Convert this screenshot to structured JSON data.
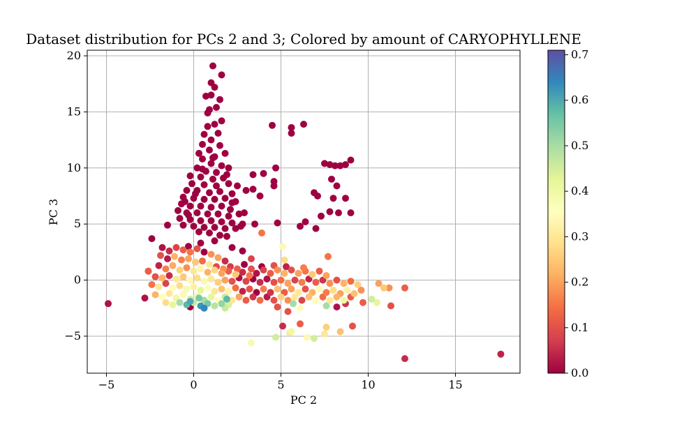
{
  "chart_data": {
    "type": "scatter",
    "title": "Dataset distribution for PCs 2 and 3; Colored by amount of CARYOPHYLLENE",
    "xlabel": "PC 2",
    "ylabel": "PC 3",
    "xlim": [
      -6.1,
      18.7
    ],
    "ylim": [
      -8.3,
      20.5
    ],
    "xticks": [
      -5,
      0,
      5,
      10,
      15
    ],
    "xtick_labels": [
      "−5",
      "0",
      "5",
      "10",
      "15"
    ],
    "yticks": [
      -5,
      0,
      5,
      10,
      15,
      20
    ],
    "ytick_labels": [
      "−5",
      "0",
      "5",
      "10",
      "15",
      "20"
    ],
    "grid": true,
    "colormap": "Spectral",
    "colorbar": {
      "label": "",
      "vmin": 0.0,
      "vmax": 0.71,
      "ticks": [
        0.0,
        0.1,
        0.2,
        0.3,
        0.4,
        0.5,
        0.6,
        0.7
      ],
      "tick_labels": [
        "0.0",
        "0.1",
        "0.2",
        "0.3",
        "0.4",
        "0.5",
        "0.6",
        "0.7"
      ],
      "stops": [
        "#9e0142",
        "#d53e4f",
        "#f46d43",
        "#fdae61",
        "#fee08b",
        "#ffffbf",
        "#e6f598",
        "#abdda4",
        "#66c2a5",
        "#3288bd",
        "#5e4fa2"
      ]
    },
    "points": [
      [
        1.1,
        19.1,
        0.0
      ],
      [
        1.6,
        18.3,
        0.0
      ],
      [
        1.0,
        17.6,
        0.0
      ],
      [
        1.2,
        17.2,
        0.0
      ],
      [
        0.7,
        16.4,
        0.0
      ],
      [
        1.0,
        16.5,
        0.0
      ],
      [
        1.5,
        16.1,
        0.0
      ],
      [
        0.9,
        15.2,
        0.0
      ],
      [
        1.3,
        15.4,
        0.0
      ],
      [
        0.8,
        14.9,
        0.0
      ],
      [
        1.6,
        14.2,
        0.0
      ],
      [
        1.2,
        13.9,
        0.0
      ],
      [
        0.8,
        13.7,
        0.0
      ],
      [
        0.6,
        13.0,
        0.0
      ],
      [
        1.4,
        13.1,
        0.0
      ],
      [
        1.0,
        12.5,
        0.0
      ],
      [
        0.5,
        12.1,
        0.0
      ],
      [
        1.5,
        12.0,
        0.0
      ],
      [
        0.9,
        11.6,
        0.0
      ],
      [
        0.3,
        11.3,
        0.0
      ],
      [
        1.2,
        11.0,
        0.0
      ],
      [
        1.8,
        11.3,
        0.0
      ],
      [
        0.5,
        10.8,
        0.0
      ],
      [
        1.0,
        10.4,
        0.0
      ],
      [
        1.6,
        10.2,
        0.0
      ],
      [
        0.2,
        10.0,
        0.0
      ],
      [
        0.7,
        9.7,
        0.0
      ],
      [
        1.3,
        9.6,
        0.0
      ],
      [
        2.0,
        10.0,
        0.0
      ],
      [
        -0.2,
        9.3,
        0.0
      ],
      [
        0.4,
        9.2,
        0.0
      ],
      [
        1.1,
        9.0,
        0.0
      ],
      [
        1.7,
        9.1,
        0.0
      ],
      [
        -0.1,
        8.6,
        0.0
      ],
      [
        0.6,
        8.5,
        0.0
      ],
      [
        1.3,
        8.4,
        0.0
      ],
      [
        2.0,
        8.6,
        0.0
      ],
      [
        -0.4,
        8.0,
        0.0
      ],
      [
        0.2,
        8.0,
        0.0
      ],
      [
        0.9,
        7.8,
        0.0
      ],
      [
        1.5,
        7.9,
        0.0
      ],
      [
        2.2,
        7.7,
        0.0
      ],
      [
        -0.6,
        7.4,
        0.0
      ],
      [
        0.0,
        7.3,
        0.0
      ],
      [
        0.6,
        7.2,
        0.0
      ],
      [
        1.2,
        7.2,
        0.0
      ],
      [
        1.8,
        7.3,
        0.0
      ],
      [
        2.4,
        7.0,
        0.0
      ],
      [
        -0.7,
        6.8,
        0.0
      ],
      [
        -0.2,
        6.6,
        0.0
      ],
      [
        0.4,
        6.6,
        0.0
      ],
      [
        1.0,
        6.5,
        0.0
      ],
      [
        1.6,
        6.6,
        0.0
      ],
      [
        2.1,
        6.3,
        0.0
      ],
      [
        -0.9,
        6.2,
        0.0
      ],
      [
        -0.4,
        6.0,
        0.0
      ],
      [
        0.2,
        6.0,
        0.0
      ],
      [
        0.8,
        5.9,
        0.0
      ],
      [
        1.4,
        5.9,
        0.0
      ],
      [
        2.0,
        5.7,
        0.0
      ],
      [
        2.6,
        5.9,
        0.0
      ],
      [
        -0.8,
        5.5,
        0.0
      ],
      [
        -0.2,
        5.4,
        0.0
      ],
      [
        0.4,
        5.3,
        0.0
      ],
      [
        1.0,
        5.3,
        0.0
      ],
      [
        1.6,
        5.2,
        0.0
      ],
      [
        2.2,
        5.1,
        0.0
      ],
      [
        2.8,
        5.0,
        0.0
      ],
      [
        -0.6,
        4.9,
        0.0
      ],
      [
        0.0,
        4.8,
        0.0
      ],
      [
        0.6,
        4.7,
        0.0
      ],
      [
        1.2,
        4.7,
        0.0
      ],
      [
        1.8,
        4.6,
        0.0
      ],
      [
        2.4,
        4.6,
        0.0
      ],
      [
        -1.5,
        4.9,
        0.0
      ],
      [
        0.3,
        4.3,
        0.0
      ],
      [
        0.9,
        4.2,
        0.0
      ],
      [
        1.5,
        4.0,
        0.0
      ],
      [
        2.7,
        4.8,
        0.0
      ],
      [
        -0.3,
        5.8,
        0.0
      ],
      [
        0.1,
        7.7,
        0.0
      ],
      [
        0.5,
        9.9,
        0.0
      ],
      [
        1.1,
        10.9,
        0.0
      ],
      [
        1.9,
        9.4,
        0.0
      ],
      [
        -0.5,
        7.0,
        0.0
      ],
      [
        2.5,
        8.4,
        0.0
      ],
      [
        2.2,
        6.9,
        0.0
      ],
      [
        3.0,
        8.0,
        0.0
      ],
      [
        2.9,
        6.0,
        0.0
      ],
      [
        3.5,
        5.0,
        0.0
      ],
      [
        3.4,
        8.1,
        0.0
      ],
      [
        3.8,
        7.5,
        0.0
      ],
      [
        3.4,
        9.4,
        0.0
      ],
      [
        4.0,
        9.5,
        0.0
      ],
      [
        4.6,
        8.8,
        0.0
      ],
      [
        4.6,
        8.4,
        0.0
      ],
      [
        4.7,
        10.0,
        0.0
      ],
      [
        4.5,
        13.8,
        0.0
      ],
      [
        5.6,
        13.6,
        0.0
      ],
      [
        5.6,
        13.1,
        0.0
      ],
      [
        6.3,
        13.9,
        0.0
      ],
      [
        6.1,
        4.8,
        0.0
      ],
      [
        6.4,
        5.2,
        0.0
      ],
      [
        7.0,
        4.6,
        0.0
      ],
      [
        6.9,
        7.8,
        0.0
      ],
      [
        7.1,
        7.5,
        0.0
      ],
      [
        7.3,
        5.7,
        0.0
      ],
      [
        7.5,
        10.4,
        0.0
      ],
      [
        7.8,
        10.3,
        0.0
      ],
      [
        8.1,
        10.2,
        0.0
      ],
      [
        8.4,
        10.2,
        0.0
      ],
      [
        8.7,
        10.3,
        0.0
      ],
      [
        9.0,
        10.7,
        0.0
      ],
      [
        7.9,
        9.0,
        0.0
      ],
      [
        8.2,
        8.4,
        0.0
      ],
      [
        8.0,
        7.3,
        0.0
      ],
      [
        8.7,
        7.3,
        0.0
      ],
      [
        7.8,
        6.1,
        0.0
      ],
      [
        8.3,
        6.0,
        0.0
      ],
      [
        9.0,
        6.0,
        0.0
      ],
      [
        4.8,
        5.1,
        0.0
      ],
      [
        -2.4,
        3.7,
        0.0
      ],
      [
        -4.9,
        -2.1,
        0.02
      ],
      [
        2.8,
        2.6,
        0.0
      ],
      [
        1.9,
        3.9,
        0.0
      ],
      [
        -1.8,
        2.9,
        0.02
      ],
      [
        -1.4,
        2.6,
        0.05
      ],
      [
        -1.0,
        2.9,
        0.08
      ],
      [
        -0.6,
        2.7,
        0.12
      ],
      [
        -0.2,
        2.5,
        0.15
      ],
      [
        0.2,
        2.8,
        0.1
      ],
      [
        0.6,
        2.5,
        0.0
      ],
      [
        1.0,
        2.3,
        0.18
      ],
      [
        1.4,
        2.0,
        0.2
      ],
      [
        1.8,
        1.7,
        0.05
      ],
      [
        -1.9,
        2.2,
        0.1
      ],
      [
        -1.5,
        1.9,
        0.03
      ],
      [
        -1.1,
        2.1,
        0.22
      ],
      [
        -0.7,
        1.8,
        0.16
      ],
      [
        -0.3,
        1.9,
        0.2
      ],
      [
        0.1,
        1.6,
        0.25
      ],
      [
        0.5,
        1.7,
        0.14
      ],
      [
        0.9,
        1.4,
        0.3
      ],
      [
        1.3,
        1.2,
        0.09
      ],
      [
        1.7,
        1.0,
        0.18
      ],
      [
        2.1,
        1.2,
        0.07
      ],
      [
        2.5,
        1.0,
        0.12
      ],
      [
        2.9,
        1.4,
        0.0
      ],
      [
        3.3,
        1.0,
        0.1
      ],
      [
        -2.6,
        0.8,
        0.1
      ],
      [
        -2.0,
        1.3,
        0.04
      ],
      [
        -1.6,
        1.0,
        0.16
      ],
      [
        -1.2,
        1.3,
        0.21
      ],
      [
        -0.8,
        0.9,
        0.26
      ],
      [
        -0.4,
        1.1,
        0.18
      ],
      [
        0.0,
        0.8,
        0.3
      ],
      [
        0.4,
        1.0,
        0.33
      ],
      [
        0.8,
        0.7,
        0.22
      ],
      [
        1.2,
        0.9,
        0.27
      ],
      [
        1.6,
        0.6,
        0.2
      ],
      [
        2.0,
        0.8,
        0.12
      ],
      [
        2.4,
        0.5,
        0.25
      ],
      [
        2.8,
        0.7,
        0.05
      ],
      [
        3.2,
        0.4,
        0.15
      ],
      [
        3.6,
        0.6,
        0.02
      ],
      [
        4.0,
        0.9,
        0.08
      ],
      [
        4.4,
        0.6,
        0.12
      ],
      [
        4.8,
        0.9,
        0.18
      ],
      [
        5.2,
        0.6,
        0.22
      ],
      [
        5.6,
        0.9,
        0.1
      ],
      [
        6.0,
        0.6,
        0.2
      ],
      [
        6.4,
        0.8,
        0.15
      ],
      [
        6.8,
        0.5,
        0.25
      ],
      [
        7.2,
        0.8,
        0.12
      ],
      [
        7.6,
        0.4,
        0.2
      ],
      [
        -2.2,
        0.3,
        0.1
      ],
      [
        -1.8,
        0.2,
        0.22
      ],
      [
        -1.4,
        0.4,
        0.05
      ],
      [
        -1.0,
        0.1,
        0.3
      ],
      [
        -0.6,
        0.3,
        0.25
      ],
      [
        -0.2,
        0.0,
        0.34
      ],
      [
        0.2,
        0.2,
        0.28
      ],
      [
        0.6,
        -0.1,
        0.38
      ],
      [
        1.0,
        0.1,
        0.3
      ],
      [
        1.4,
        -0.2,
        0.26
      ],
      [
        1.8,
        0.0,
        0.2
      ],
      [
        2.2,
        -0.1,
        0.1
      ],
      [
        2.6,
        0.2,
        0.02
      ],
      [
        3.0,
        -0.1,
        0.08
      ],
      [
        3.4,
        0.1,
        0.0
      ],
      [
        3.8,
        -0.2,
        0.05
      ],
      [
        4.2,
        0.1,
        0.02
      ],
      [
        4.6,
        -0.2,
        0.1
      ],
      [
        5.0,
        0.0,
        0.14
      ],
      [
        5.4,
        -0.3,
        0.2
      ],
      [
        5.8,
        0.0,
        0.08
      ],
      [
        6.2,
        -0.2,
        0.16
      ],
      [
        6.6,
        0.1,
        0.04
      ],
      [
        7.0,
        -0.2,
        0.12
      ],
      [
        7.4,
        0.0,
        0.06
      ],
      [
        7.8,
        -0.3,
        0.18
      ],
      [
        8.2,
        0.0,
        0.1
      ],
      [
        8.6,
        -0.3,
        0.22
      ],
      [
        9.0,
        -0.1,
        0.14
      ],
      [
        9.4,
        -0.4,
        0.26
      ],
      [
        -2.4,
        -0.4,
        0.15
      ],
      [
        -2.0,
        -0.6,
        0.3
      ],
      [
        -1.6,
        -0.3,
        0.08
      ],
      [
        -1.2,
        -0.7,
        0.35
      ],
      [
        -0.8,
        -0.5,
        0.28
      ],
      [
        -0.4,
        -0.8,
        0.38
      ],
      [
        0.0,
        -0.6,
        0.32
      ],
      [
        0.4,
        -0.9,
        0.42
      ],
      [
        0.8,
        -0.7,
        0.36
      ],
      [
        1.2,
        -1.0,
        0.3
      ],
      [
        1.6,
        -0.8,
        0.24
      ],
      [
        2.0,
        -1.0,
        0.33
      ],
      [
        2.4,
        -0.7,
        0.14
      ],
      [
        2.8,
        -1.0,
        0.04
      ],
      [
        3.2,
        -0.8,
        0.1
      ],
      [
        3.6,
        -1.1,
        0.0
      ],
      [
        4.0,
        -0.8,
        0.16
      ],
      [
        4.4,
        -1.1,
        0.06
      ],
      [
        4.8,
        -0.8,
        0.24
      ],
      [
        5.2,
        -1.1,
        0.12
      ],
      [
        5.6,
        -0.8,
        0.2
      ],
      [
        6.0,
        -1.1,
        0.3
      ],
      [
        6.4,
        -0.8,
        0.1
      ],
      [
        6.8,
        -1.1,
        0.22
      ],
      [
        7.2,
        -0.8,
        0.34
      ],
      [
        7.6,
        -1.1,
        0.16
      ],
      [
        8.0,
        -0.9,
        0.28
      ],
      [
        8.4,
        -1.2,
        0.2
      ],
      [
        8.8,
        -0.9,
        0.32
      ],
      [
        9.2,
        -1.2,
        0.24
      ],
      [
        9.6,
        -0.9,
        0.18
      ],
      [
        -2.8,
        -1.6,
        0.02
      ],
      [
        -2.2,
        -1.3,
        0.22
      ],
      [
        -1.8,
        -1.5,
        0.36
      ],
      [
        -1.4,
        -1.2,
        0.3
      ],
      [
        -1.0,
        -1.6,
        0.4
      ],
      [
        -0.6,
        -1.3,
        0.34
      ],
      [
        -0.2,
        -1.7,
        0.45
      ],
      [
        0.2,
        -1.4,
        0.38
      ],
      [
        0.6,
        -1.8,
        0.5
      ],
      [
        1.0,
        -1.5,
        0.42
      ],
      [
        1.4,
        -1.8,
        0.35
      ],
      [
        1.8,
        -1.5,
        0.46
      ],
      [
        2.2,
        -1.8,
        0.3
      ],
      [
        2.6,
        -1.5,
        0.2
      ],
      [
        3.0,
        -1.8,
        0.12
      ],
      [
        3.4,
        -1.5,
        0.06
      ],
      [
        3.8,
        -1.8,
        0.14
      ],
      [
        4.2,
        -1.5,
        0.03
      ],
      [
        4.6,
        -1.8,
        0.1
      ],
      [
        5.0,
        -1.5,
        0.26
      ],
      [
        5.4,
        -1.8,
        0.18
      ],
      [
        5.8,
        -1.5,
        0.3
      ],
      [
        6.2,
        -1.8,
        0.08
      ],
      [
        6.6,
        -1.5,
        0.24
      ],
      [
        7.0,
        -1.8,
        0.36
      ],
      [
        7.4,
        -1.5,
        0.14
      ],
      [
        7.8,
        -1.8,
        0.3
      ],
      [
        8.2,
        -1.5,
        0.22
      ],
      [
        8.6,
        -1.8,
        0.4
      ],
      [
        9.0,
        -1.5,
        0.12
      ],
      [
        -1.6,
        -2.0,
        0.28
      ],
      [
        -1.2,
        -2.2,
        0.42
      ],
      [
        -0.8,
        -2.0,
        0.5
      ],
      [
        -0.4,
        -2.2,
        0.58
      ],
      [
        0.0,
        -2.0,
        0.46
      ],
      [
        0.4,
        -2.3,
        0.62
      ],
      [
        0.8,
        -2.1,
        0.55
      ],
      [
        1.2,
        -2.3,
        0.48
      ],
      [
        1.6,
        -2.1,
        0.52
      ],
      [
        2.0,
        -2.2,
        0.44
      ],
      [
        -0.2,
        -2.4,
        0.0
      ],
      [
        0.6,
        -2.5,
        0.64
      ],
      [
        1.8,
        -2.5,
        0.46
      ],
      [
        -0.2,
        -1.9,
        0.6
      ],
      [
        1.9,
        -1.7,
        0.58
      ],
      [
        0.3,
        -1.6,
        0.55
      ],
      [
        4.8,
        -2.4,
        0.1
      ],
      [
        5.7,
        -2.1,
        0.5
      ],
      [
        6.1,
        -2.5,
        0.35
      ],
      [
        7.6,
        -2.3,
        0.5
      ],
      [
        8.2,
        -2.4,
        0.02
      ],
      [
        8.7,
        -2.1,
        0.06
      ],
      [
        9.7,
        -2.0,
        0.12
      ],
      [
        10.2,
        -1.7,
        0.45
      ],
      [
        10.5,
        -2.0,
        0.42
      ],
      [
        10.6,
        -0.3,
        0.2
      ],
      [
        10.9,
        -0.7,
        0.25
      ],
      [
        11.2,
        -0.7,
        0.18
      ],
      [
        11.3,
        -2.3,
        0.1
      ],
      [
        12.1,
        -0.7,
        0.12
      ],
      [
        5.4,
        -2.8,
        0.1
      ],
      [
        5.1,
        -4.1,
        0.05
      ],
      [
        6.1,
        -3.9,
        0.12
      ],
      [
        5.5,
        -4.7,
        0.3
      ],
      [
        5.6,
        -4.6,
        0.4
      ],
      [
        4.7,
        -5.1,
        0.45
      ],
      [
        3.3,
        -5.6,
        0.38
      ],
      [
        6.5,
        -5.1,
        0.34
      ],
      [
        6.9,
        -5.2,
        0.45
      ],
      [
        7.5,
        -4.8,
        0.3
      ],
      [
        7.6,
        -4.2,
        0.26
      ],
      [
        8.4,
        -4.6,
        0.24
      ],
      [
        9.1,
        -4.1,
        0.1
      ],
      [
        7.7,
        2.1,
        0.15
      ],
      [
        5.1,
        3.0,
        0.34
      ],
      [
        5.2,
        1.8,
        0.28
      ],
      [
        3.9,
        4.2,
        0.15
      ],
      [
        -2.6,
        0.8,
        0.12
      ],
      [
        12.1,
        -7.0,
        0.05
      ],
      [
        17.6,
        -6.6,
        0.04
      ],
      [
        0.4,
        3.3,
        0.0
      ],
      [
        1.2,
        3.5,
        0.0
      ],
      [
        -0.3,
        3.0,
        0.0
      ],
      [
        2.2,
        2.9,
        0.0
      ],
      [
        3.3,
        1.9,
        0.08
      ],
      [
        3.9,
        1.2,
        0.0
      ],
      [
        4.6,
        1.3,
        0.1
      ],
      [
        5.3,
        1.2,
        0.04
      ],
      [
        6.3,
        1.1,
        0.16
      ]
    ]
  }
}
